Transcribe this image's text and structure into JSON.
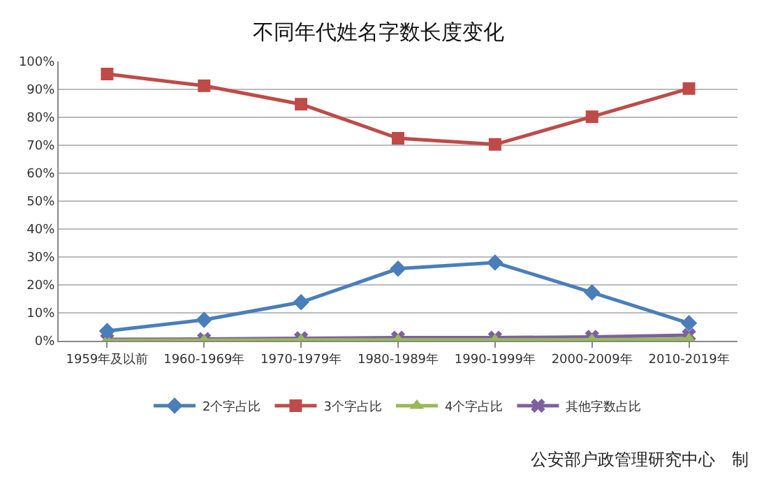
{
  "chart_data": {
    "type": "line",
    "title": "不同年代姓名字数长度变化",
    "categories": [
      "1959年及以前",
      "1960-1969年",
      "1970-1979年",
      "1980-1989年",
      "1990-1999年",
      "2000-2009年",
      "2010-2019年"
    ],
    "series": [
      {
        "name": "2个字占比",
        "color": "#4a7ebb",
        "marker": "diamond",
        "values": [
          3.5,
          7.5,
          13.8,
          25.8,
          28,
          17.3,
          6.3
        ]
      },
      {
        "name": "3个字占比",
        "color": "#be4b48",
        "marker": "square",
        "values": [
          95.5,
          91.3,
          84.7,
          72.5,
          70.3,
          80.2,
          90.3
        ]
      },
      {
        "name": "4个字占比",
        "color": "#98b954",
        "marker": "triangle",
        "values": [
          0.1,
          0.2,
          0.3,
          0.3,
          0.3,
          0.4,
          0.6
        ]
      },
      {
        "name": "其他字数占比",
        "color": "#7d60a0",
        "marker": "cross",
        "values": [
          0.5,
          0.6,
          0.9,
          1.1,
          1.1,
          1.4,
          2
        ]
      }
    ],
    "ylim": [
      0,
      100
    ],
    "yticks": [
      {
        "value": 0,
        "label": "0%"
      },
      {
        "value": 10,
        "label": "10%"
      },
      {
        "value": 20,
        "label": "20%"
      },
      {
        "value": 30,
        "label": "30%"
      },
      {
        "value": 40,
        "label": "40%"
      },
      {
        "value": 50,
        "label": "50%"
      },
      {
        "value": 60,
        "label": "60%"
      },
      {
        "value": 70,
        "label": "70%"
      },
      {
        "value": 80,
        "label": "80%"
      },
      {
        "value": 90,
        "label": "90%"
      },
      {
        "value": 100,
        "label": "100%"
      }
    ],
    "grid": "y",
    "legend": "bottom",
    "line_style": "solid",
    "annotations": [
      "公安部户政管理研究中心　制"
    ]
  }
}
